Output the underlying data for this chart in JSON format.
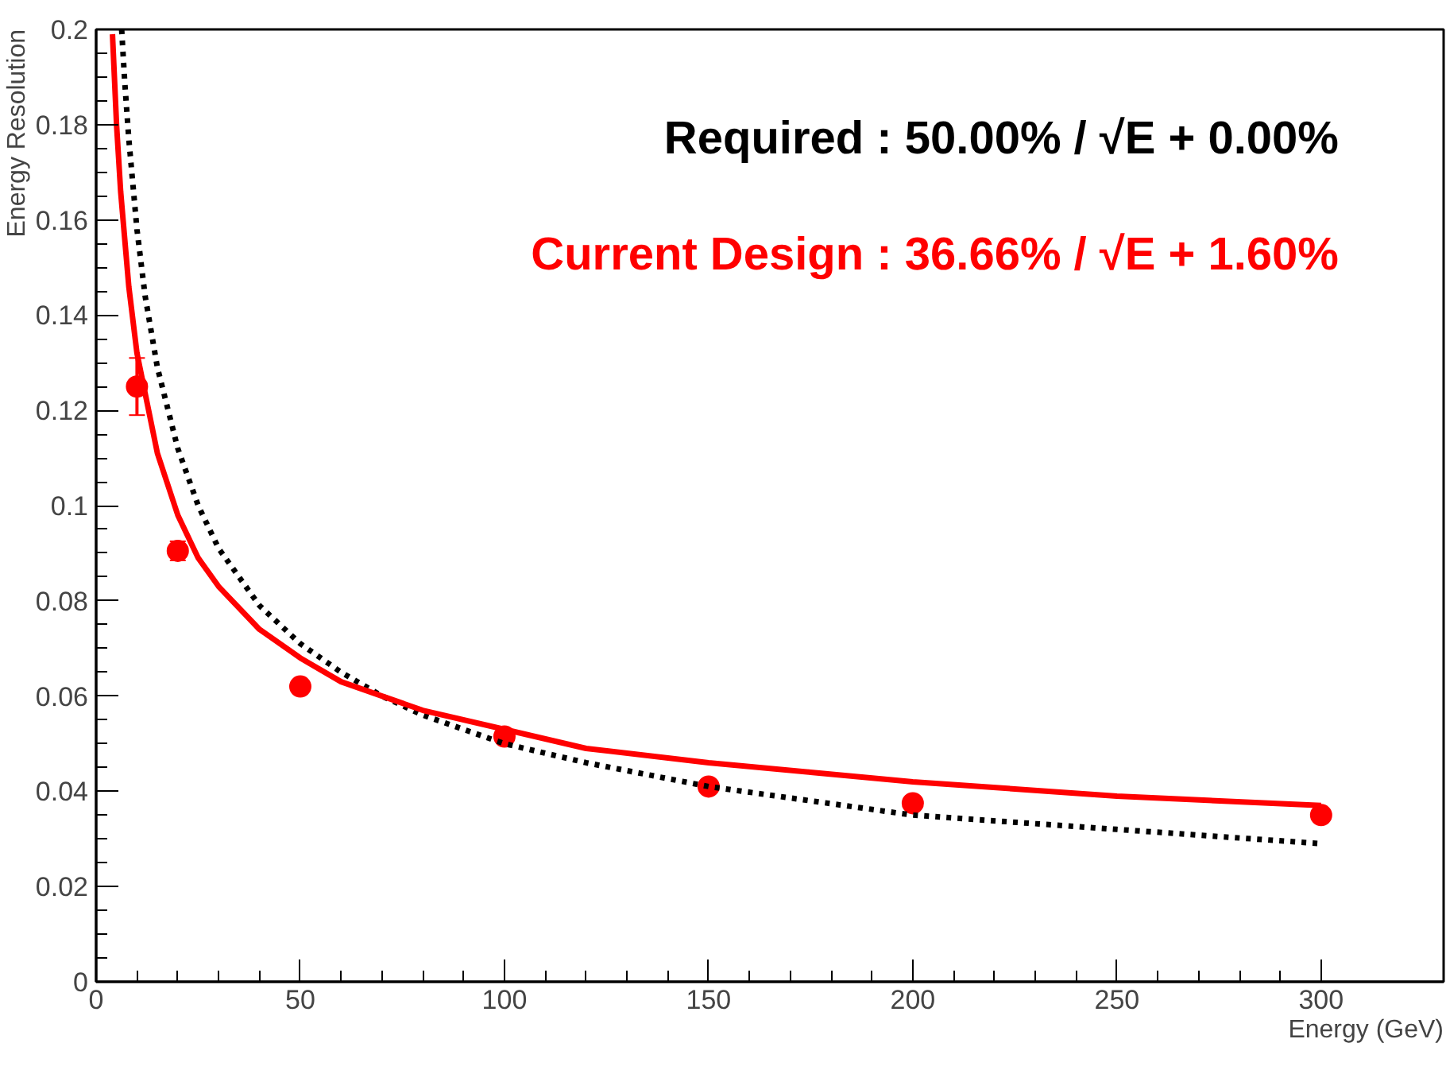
{
  "chart_data": {
    "type": "line",
    "xlabel": "Energy (GeV)",
    "ylabel": "Energy Resolution",
    "xlim": [
      0,
      330
    ],
    "ylim": [
      0,
      0.2
    ],
    "xticks": [
      0,
      50,
      100,
      150,
      200,
      250,
      300
    ],
    "yticks": [
      0,
      0.02,
      0.04,
      0.06,
      0.08,
      0.1,
      0.12,
      0.14,
      0.16,
      0.18,
      0.2
    ],
    "grid": false,
    "legend": "top right",
    "series": [
      {
        "type": "scatter",
        "marker": "circle",
        "color": "#ff0000",
        "x": [
          10,
          20,
          50,
          100,
          150,
          200,
          300
        ],
        "values": [
          0.125,
          0.0905,
          0.062,
          0.0515,
          0.041,
          0.0375,
          0.035
        ],
        "errors": [
          0.006,
          0.002,
          null,
          null,
          null,
          null,
          null
        ]
      },
      {
        "name": "Required : 50.00% /  √E + 0.00%",
        "color": "#000000",
        "line_style": "dotted",
        "x": [
          6.25,
          7,
          8,
          10,
          12,
          15,
          20,
          25,
          30,
          40,
          50,
          60,
          70,
          80,
          100,
          120,
          150,
          175,
          200,
          250,
          300
        ],
        "values": [
          0.2,
          0.189,
          0.177,
          0.158,
          0.144,
          0.129,
          0.112,
          0.1,
          0.091,
          0.079,
          0.071,
          0.065,
          0.06,
          0.056,
          0.05,
          0.046,
          0.041,
          0.038,
          0.035,
          0.032,
          0.029
        ]
      },
      {
        "name": "Current Design : 36.66% /  √E + 1.60%",
        "color": "#ff0000",
        "line_style": "solid",
        "x": [
          4,
          5,
          6,
          8,
          10,
          15,
          20,
          25,
          30,
          40,
          50,
          60,
          70,
          80,
          100,
          120,
          150,
          175,
          200,
          250,
          300
        ],
        "values": [
          0.199,
          0.18,
          0.166,
          0.146,
          0.132,
          0.111,
          0.098,
          0.089,
          0.083,
          0.074,
          0.068,
          0.063,
          0.06,
          0.057,
          0.053,
          0.049,
          0.046,
          0.044,
          0.042,
          0.039,
          0.037
        ]
      }
    ]
  }
}
